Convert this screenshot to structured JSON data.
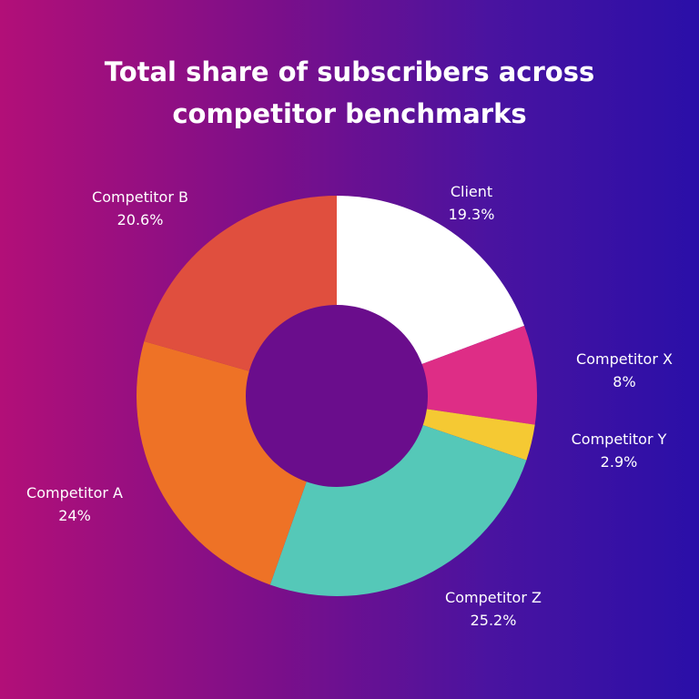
{
  "title_lines": [
    "Total share of subscribers across",
    "competitor benchmarks"
  ],
  "chart_data": {
    "type": "pie",
    "donut": true,
    "title": "Total share of subscribers across competitor benchmarks",
    "categories": [
      "Client",
      "Competitor X",
      "Competitor Y",
      "Competitor Z",
      "Competitor A",
      "Competitor B"
    ],
    "values": [
      19.3,
      8,
      2.9,
      25.2,
      24,
      20.6
    ],
    "value_labels": [
      "19.3%",
      "8%",
      "2.9%",
      "25.2%",
      "24%",
      "20.6%"
    ],
    "colors": [
      "#ffffff",
      "#de2d86",
      "#f5c933",
      "#55c8b8",
      "#ee7226",
      "#e04f3e"
    ],
    "start_angle_deg": 0,
    "direction": "clockwise"
  },
  "colors": {
    "center_hole": "#6a0d8c"
  }
}
